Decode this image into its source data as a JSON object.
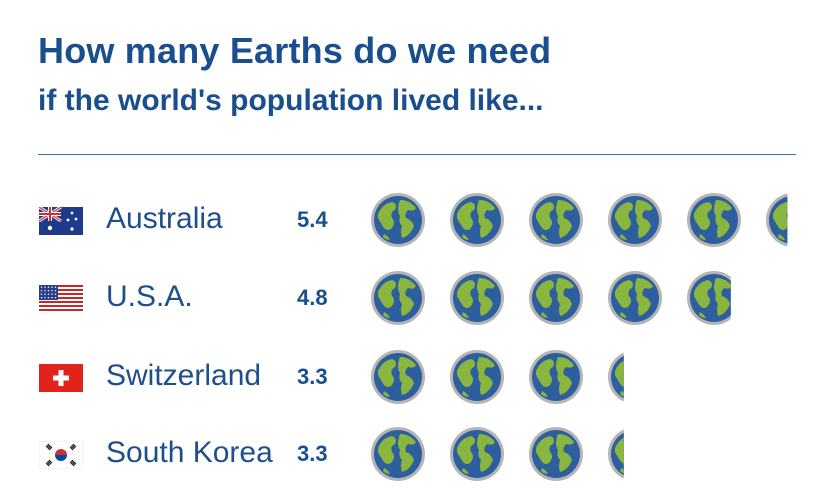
{
  "header": {
    "title": "How many Earths do we need",
    "subtitle": "if the world's population lived like..."
  },
  "colors": {
    "text": "#1a4f8f",
    "ocean": "#2d5e9e",
    "land": "#8ab53f",
    "rim": "#b5b5b5"
  },
  "chart_data": {
    "type": "bar",
    "title": "How many Earths do we need",
    "subtitle": "if the world's population lived like...",
    "unit_icon": "earth-icon",
    "categories": [
      "Australia",
      "U.S.A.",
      "Switzerland",
      "South Korea"
    ],
    "values": [
      5.4,
      4.8,
      3.3,
      3.3
    ],
    "value_labels": [
      "5.4",
      "4.8",
      "3.3",
      "3.3"
    ],
    "flags": [
      "flag-australia-icon",
      "flag-usa-icon",
      "flag-switzerland-icon",
      "flag-south-korea-icon"
    ]
  }
}
